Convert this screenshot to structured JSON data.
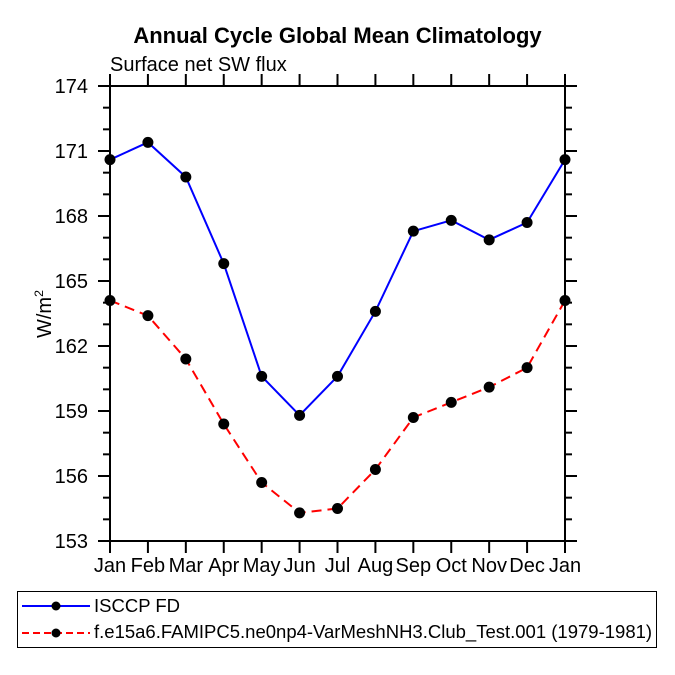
{
  "chart_data": {
    "type": "line",
    "title": "Annual Cycle Global Mean Climatology",
    "subtitle": "Surface net SW flux",
    "ylabel": "W/m²",
    "categories": [
      "Jan",
      "Feb",
      "Mar",
      "Apr",
      "May",
      "Jun",
      "Jul",
      "Aug",
      "Sep",
      "Oct",
      "Nov",
      "Dec",
      "Jan"
    ],
    "ylim": [
      153,
      174
    ],
    "ytick_major_interval": 3,
    "ytick_minor_interval": 1,
    "ytick_major_labels": [
      "153",
      "156",
      "159",
      "162",
      "165",
      "168",
      "171",
      "174"
    ],
    "grid": false,
    "legend_position": "bottom",
    "axis_color": "#000000",
    "series": [
      {
        "name": "ISCCP FD",
        "line_color": "#0000ff",
        "line_style": "solid",
        "marker": "filled-circle",
        "marker_color": "#000000",
        "values": [
          170.6,
          171.4,
          169.8,
          165.8,
          160.6,
          158.8,
          160.6,
          163.6,
          167.3,
          167.8,
          166.9,
          167.7,
          170.6
        ]
      },
      {
        "name": "f.e15a6.FAMIPC5.ne0np4-VarMeshNH3.Club_Test.001 (1979-1981)",
        "line_color": "#ff0000",
        "line_style": "dashed",
        "marker": "filled-circle",
        "marker_color": "#000000",
        "values": [
          164.1,
          163.4,
          161.4,
          158.4,
          155.7,
          154.3,
          154.5,
          156.3,
          158.7,
          159.4,
          160.1,
          161.0,
          164.1
        ]
      }
    ]
  }
}
